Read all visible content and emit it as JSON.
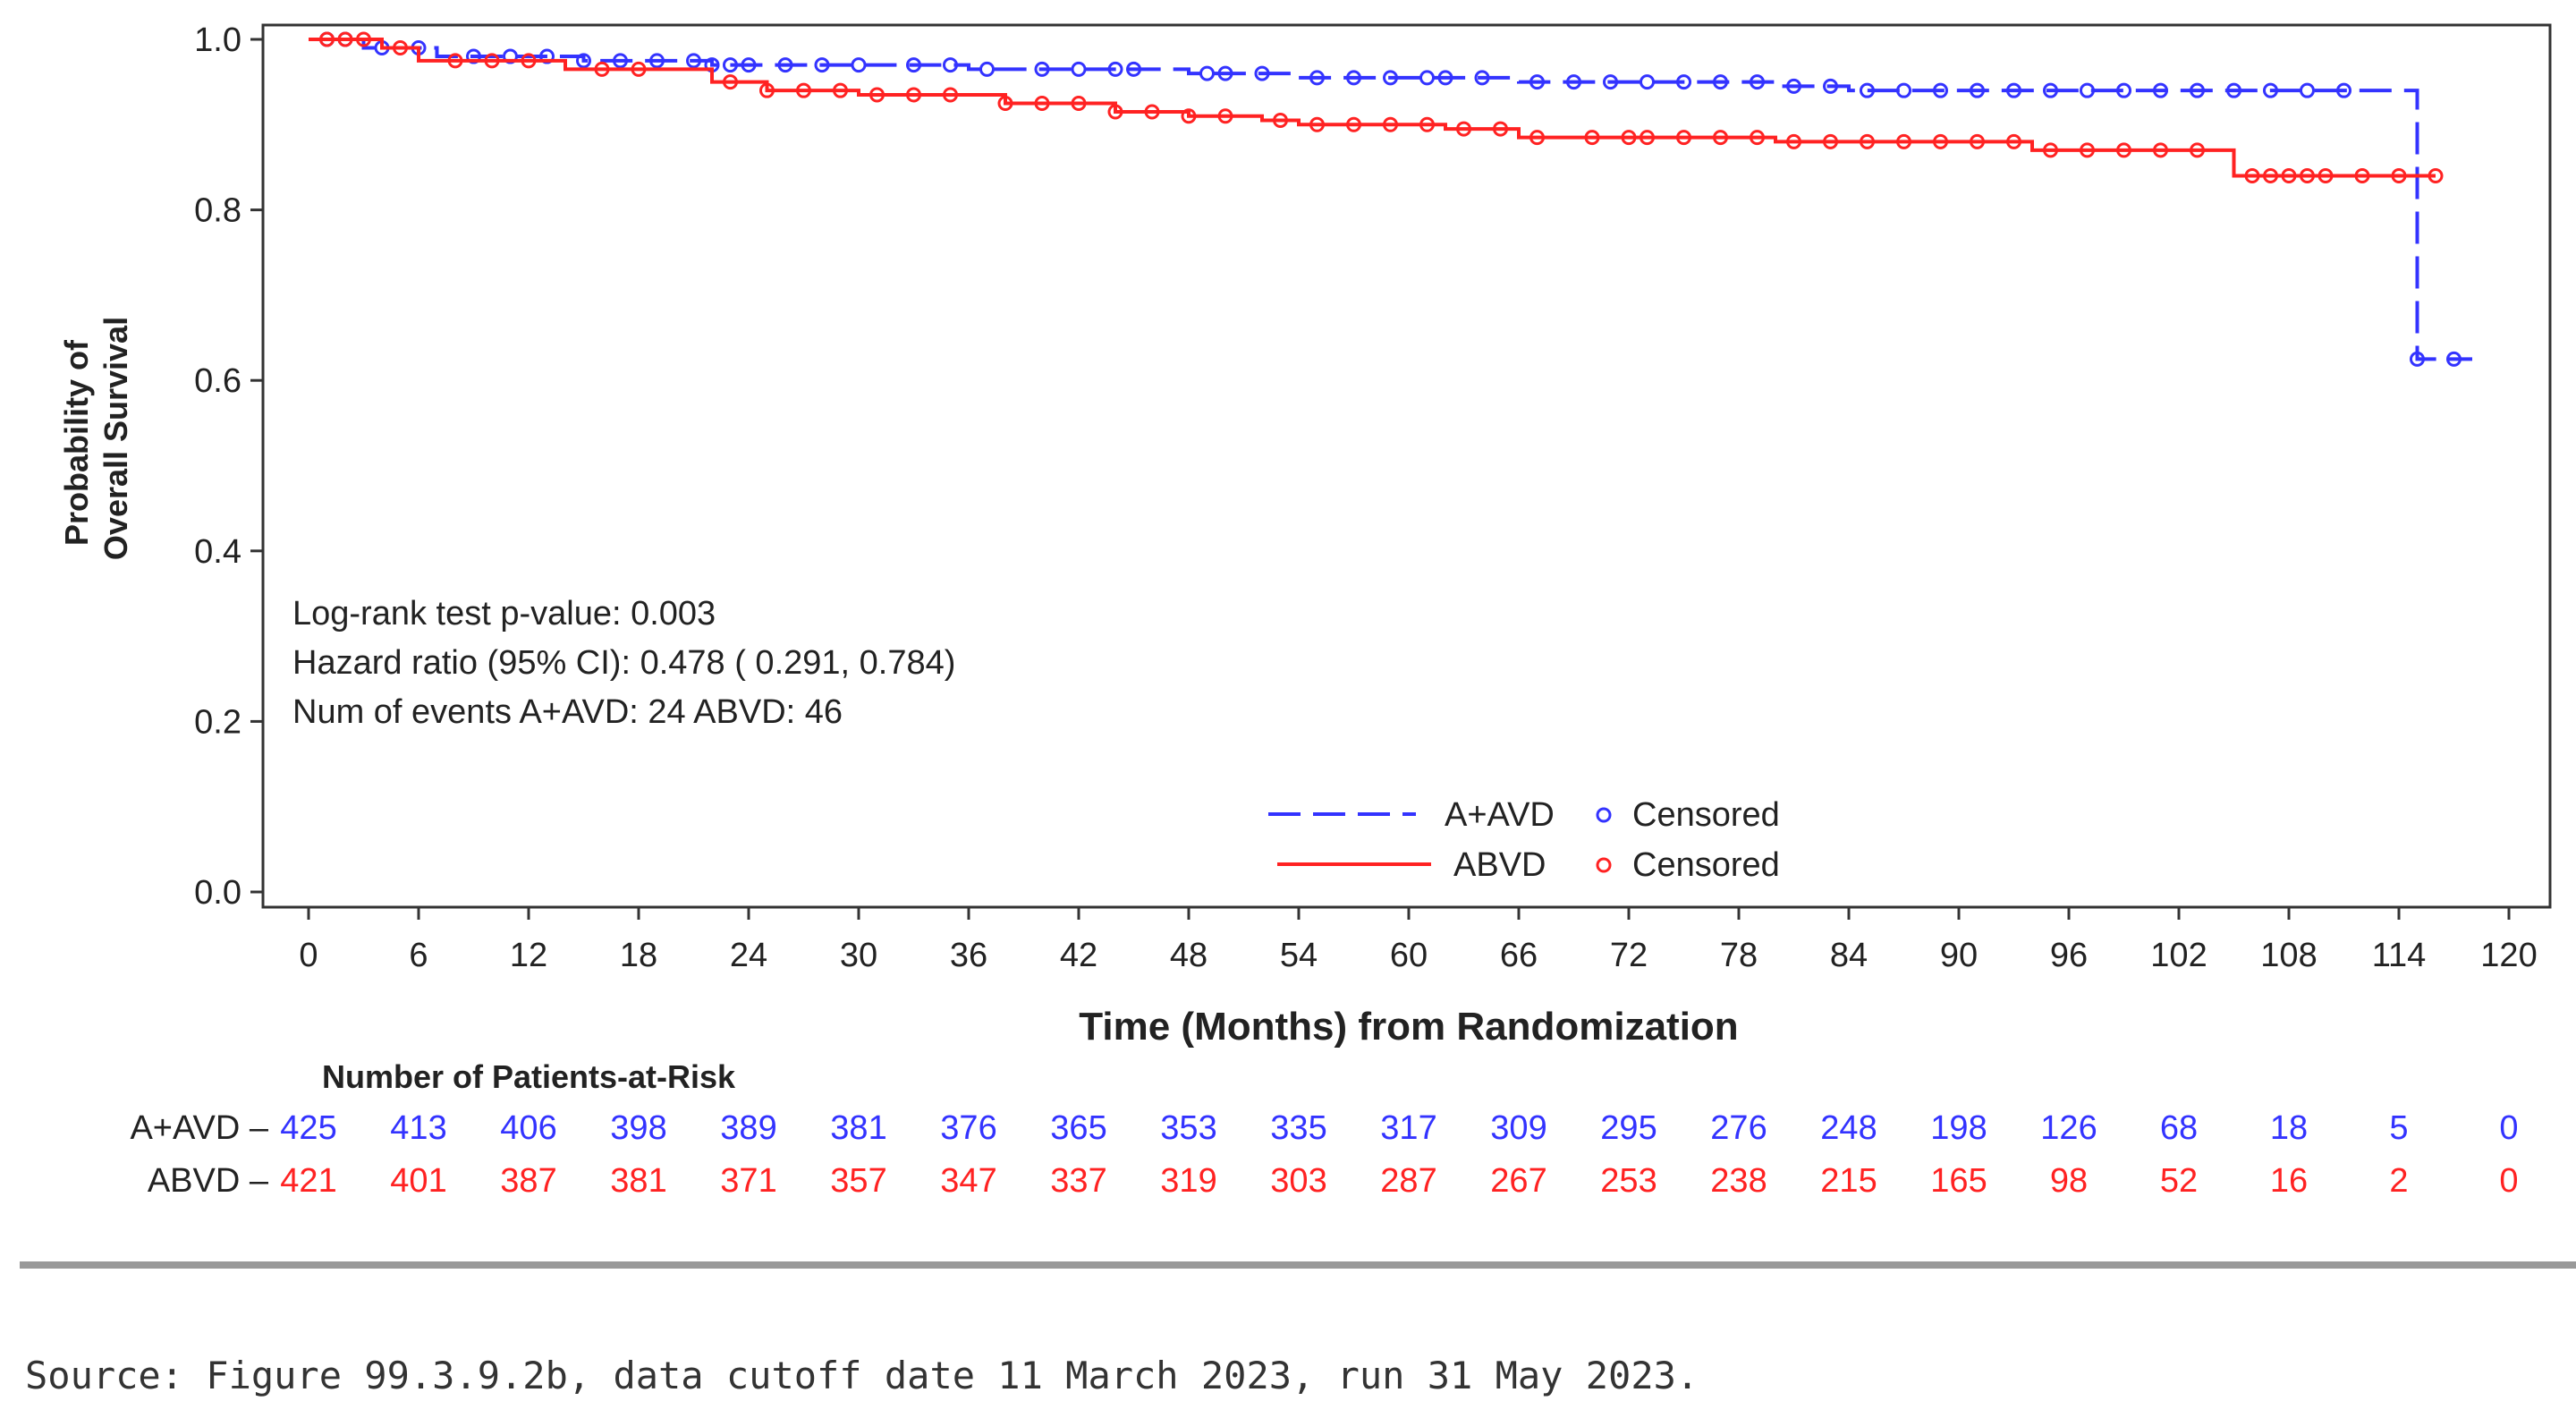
{
  "chart_data": {
    "type": "line",
    "subtype": "kaplan-meier",
    "xlabel": "Time (Months) from Randomization",
    "ylabel_line1": "Probability of",
    "ylabel_line2": "Overall Survival",
    "xlim": [
      0,
      120
    ],
    "ylim": [
      0,
      1.0
    ],
    "x_ticks": [
      "0",
      "6",
      "12",
      "18",
      "24",
      "30",
      "36",
      "42",
      "48",
      "54",
      "60",
      "66",
      "72",
      "78",
      "84",
      "90",
      "96",
      "102",
      "108",
      "114",
      "120"
    ],
    "y_ticks": [
      "0.0",
      "0.2",
      "0.4",
      "0.6",
      "0.8",
      "1.0"
    ],
    "grid": false,
    "legend_placement": "bottom-center",
    "annotations": [
      "Log-rank test p-value: 0.003",
      "Hazard ratio (95% CI):  0.478 ( 0.291,  0.784)",
      "Num of events  A+AVD: 24  ABVD: 46"
    ],
    "series": [
      {
        "name": "A+AVD",
        "censored_label": "Censored",
        "color": "#3333ff",
        "style": "dashed",
        "steps": [
          [
            0,
            1.0
          ],
          [
            3,
            0.99
          ],
          [
            7,
            0.98
          ],
          [
            15,
            0.975
          ],
          [
            22,
            0.97
          ],
          [
            36,
            0.965
          ],
          [
            48,
            0.96
          ],
          [
            54,
            0.955
          ],
          [
            66,
            0.95
          ],
          [
            80,
            0.945
          ],
          [
            84,
            0.94
          ],
          [
            115,
            0.625
          ],
          [
            118,
            0.625
          ]
        ],
        "censored": [
          1,
          2,
          4,
          6,
          9,
          11,
          13,
          15,
          17,
          19,
          21,
          22,
          23,
          24,
          26,
          28,
          30,
          33,
          35,
          37,
          40,
          42,
          44,
          45,
          49,
          50,
          52,
          55,
          57,
          59,
          61,
          62,
          64,
          67,
          69,
          71,
          73,
          75,
          77,
          79,
          81,
          83,
          85,
          87,
          89,
          91,
          93,
          95,
          97,
          99,
          101,
          103,
          105,
          107,
          109,
          111,
          115,
          117
        ]
      },
      {
        "name": "ABVD",
        "censored_label": "Censored",
        "color": "#ff2222",
        "style": "solid",
        "steps": [
          [
            0,
            1.0
          ],
          [
            4,
            0.99
          ],
          [
            6,
            0.975
          ],
          [
            14,
            0.965
          ],
          [
            22,
            0.95
          ],
          [
            25,
            0.94
          ],
          [
            30,
            0.935
          ],
          [
            38,
            0.925
          ],
          [
            44,
            0.915
          ],
          [
            48,
            0.91
          ],
          [
            52,
            0.905
          ],
          [
            54,
            0.9
          ],
          [
            62,
            0.895
          ],
          [
            66,
            0.885
          ],
          [
            80,
            0.88
          ],
          [
            94,
            0.87
          ],
          [
            105,
            0.84
          ],
          [
            116,
            0.84
          ]
        ],
        "censored": [
          1,
          2,
          3,
          5,
          8,
          10,
          12,
          16,
          18,
          23,
          25,
          27,
          29,
          31,
          33,
          35,
          38,
          40,
          42,
          44,
          46,
          48,
          50,
          53,
          55,
          57,
          59,
          61,
          63,
          65,
          67,
          70,
          72,
          73,
          75,
          77,
          79,
          81,
          83,
          85,
          87,
          89,
          91,
          93,
          95,
          97,
          99,
          101,
          103,
          106,
          107,
          108,
          109,
          110,
          112,
          114,
          116
        ]
      }
    ],
    "at_risk": {
      "title": "Number of Patients-at-Risk",
      "rows": [
        {
          "label": "A+AVD",
          "color": "#3333ff",
          "values": [
            "425",
            "413",
            "406",
            "398",
            "389",
            "381",
            "376",
            "365",
            "353",
            "335",
            "317",
            "309",
            "295",
            "276",
            "248",
            "198",
            "126",
            "68",
            "18",
            "5",
            "0"
          ]
        },
        {
          "label": "ABVD",
          "color": "#ff2222",
          "values": [
            "421",
            "401",
            "387",
            "381",
            "371",
            "357",
            "347",
            "337",
            "319",
            "303",
            "287",
            "267",
            "253",
            "238",
            "215",
            "165",
            "98",
            "52",
            "16",
            "2",
            "0"
          ]
        }
      ]
    }
  },
  "source": "Source: Figure 99.3.9.2b, data cutoff date 11 March 2023, run 31 May 2023."
}
